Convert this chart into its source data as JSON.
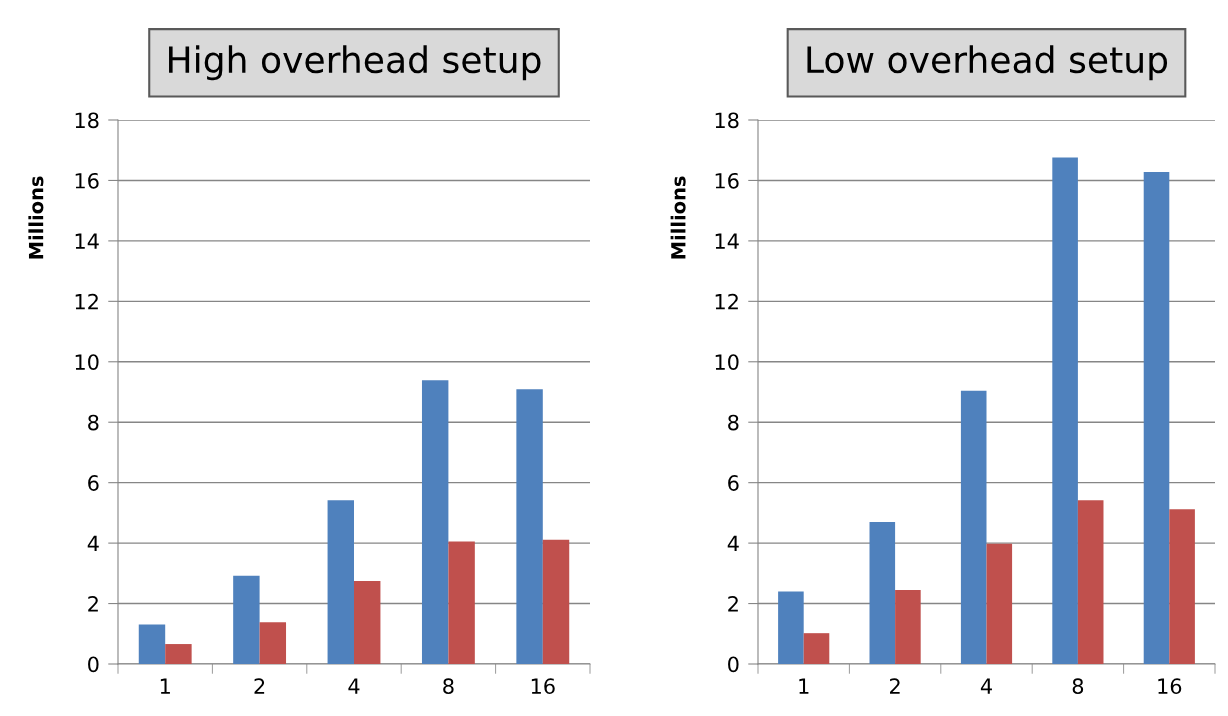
{
  "chart_data": [
    {
      "type": "bar",
      "title": "High overhead setup",
      "ylabel": "Millions",
      "categories": [
        "1",
        "2",
        "4",
        "8",
        "16"
      ],
      "series": [
        {
          "color": "#4f81bd",
          "values": [
            1.31,
            2.92,
            5.42,
            9.39,
            9.09
          ]
        },
        {
          "color": "#c0504d",
          "values": [
            0.66,
            1.38,
            2.75,
            4.05,
            4.11
          ]
        }
      ],
      "ylim": [
        0,
        18
      ],
      "yticks": [
        0,
        2,
        4,
        6,
        8,
        10,
        12,
        14,
        16,
        18
      ],
      "grid": "y"
    },
    {
      "type": "bar",
      "title": "Low overhead setup",
      "ylabel": "Millions",
      "categories": [
        "1",
        "2",
        "4",
        "8",
        "16"
      ],
      "series": [
        {
          "color": "#4f81bd",
          "values": [
            2.4,
            4.7,
            9.04,
            16.76,
            16.28
          ]
        },
        {
          "color": "#c0504d",
          "values": [
            1.02,
            2.45,
            3.98,
            5.42,
            5.12
          ]
        }
      ],
      "ylim": [
        0,
        18
      ],
      "yticks": [
        0,
        2,
        4,
        6,
        8,
        10,
        12,
        14,
        16,
        18
      ],
      "grid": "y"
    }
  ]
}
